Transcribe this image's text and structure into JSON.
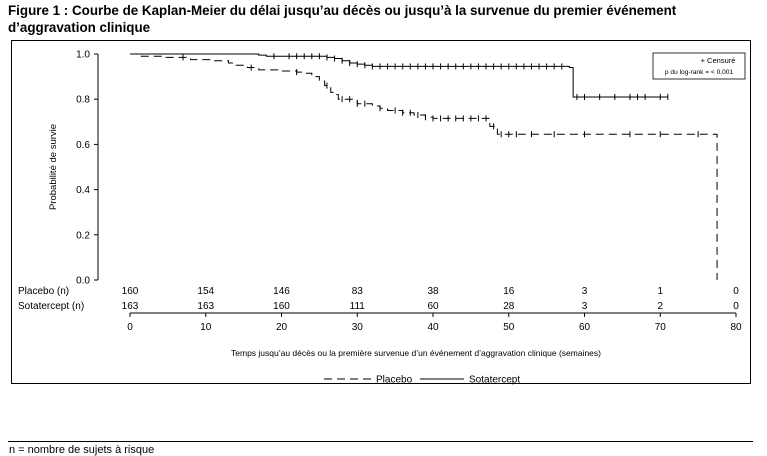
{
  "title": "Figure 1 : Courbe de Kaplan-Meier du délai jusqu’au décès ou jusqu’à la survenue du premier événement d’aggravation clinique",
  "footnote": "n = nombre de sujets à risque",
  "legend_box": {
    "censored": "+ Censuré",
    "pvalue": "p du log-rank = < 0,001"
  },
  "colors": {
    "axis": "#000000",
    "background": "#ffffff"
  },
  "chart_data": {
    "type": "line",
    "xlabel": "Temps jusqu’au décès ou la première survenue d’un événement d’aggravation clinique (semaines)",
    "ylabel": "Probabilité de survie",
    "xlim": [
      0,
      80
    ],
    "ylim": [
      0,
      1
    ],
    "x_ticks": [
      0,
      10,
      20,
      30,
      40,
      50,
      60,
      70,
      80
    ],
    "y_ticks": [
      "0.0",
      "0.2",
      "0.4",
      "0.6",
      "0.8",
      "1.0"
    ],
    "grid": false,
    "legend_position": "bottom",
    "series": [
      {
        "name": "Placebo",
        "style": "dashed",
        "steps": [
          [
            0,
            1.0
          ],
          [
            1.5,
            0.99
          ],
          [
            4.5,
            0.985
          ],
          [
            8,
            0.975
          ],
          [
            11,
            0.97
          ],
          [
            13,
            0.96
          ],
          [
            14,
            0.95
          ],
          [
            15.5,
            0.94
          ],
          [
            17,
            0.93
          ],
          [
            20,
            0.925
          ],
          [
            22,
            0.92
          ],
          [
            23,
            0.915
          ],
          [
            24,
            0.9
          ],
          [
            25,
            0.88
          ],
          [
            25.7,
            0.86
          ],
          [
            26.5,
            0.83
          ],
          [
            27,
            0.82
          ],
          [
            27.5,
            0.8
          ],
          [
            30,
            0.78
          ],
          [
            32,
            0.77
          ],
          [
            33,
            0.76
          ],
          [
            34,
            0.75
          ],
          [
            36,
            0.74
          ],
          [
            37.5,
            0.73
          ],
          [
            39,
            0.72
          ],
          [
            40,
            0.715
          ],
          [
            47.5,
            0.68
          ],
          [
            48.5,
            0.645
          ],
          [
            77,
            0.645
          ],
          [
            77.5,
            0.0
          ]
        ],
        "end": 77.5,
        "censored": [
          7,
          16,
          22,
          26,
          28,
          29,
          30,
          31,
          33,
          35,
          36,
          37,
          38,
          39,
          40,
          41,
          42,
          43,
          44,
          45,
          46,
          47,
          48,
          49,
          50,
          51,
          53,
          56,
          60,
          66,
          70,
          75
        ]
      },
      {
        "name": "Sotatercept",
        "style": "solid",
        "steps": [
          [
            0,
            1.0
          ],
          [
            17,
            0.995
          ],
          [
            18,
            0.99
          ],
          [
            26,
            0.985
          ],
          [
            27,
            0.98
          ],
          [
            28,
            0.97
          ],
          [
            29,
            0.96
          ],
          [
            30,
            0.955
          ],
          [
            31,
            0.95
          ],
          [
            32,
            0.945
          ],
          [
            58,
            0.94
          ],
          [
            58.5,
            0.81
          ]
        ],
        "end": 71,
        "censored": [
          19,
          21,
          22,
          23,
          24,
          25,
          26,
          27,
          28,
          29,
          30,
          31,
          32,
          33,
          34,
          35,
          36,
          37,
          38,
          39,
          40,
          41,
          42,
          43,
          44,
          45,
          46,
          47,
          48,
          49,
          50,
          51,
          52,
          53,
          54,
          55,
          56,
          57,
          59,
          60,
          62,
          64,
          66,
          67,
          68,
          70,
          71
        ]
      }
    ],
    "at_risk": {
      "x": [
        0,
        10,
        20,
        30,
        40,
        50,
        60,
        70,
        80
      ],
      "rows": [
        {
          "label": "Placebo (n)",
          "counts": [
            "160",
            "154",
            "146",
            "83",
            "38",
            "16",
            "3",
            "1",
            "0"
          ]
        },
        {
          "label": "Sotatercept (n)",
          "counts": [
            "163",
            "163",
            "160",
            "111",
            "60",
            "28",
            "3",
            "2",
            "0"
          ]
        }
      ]
    }
  }
}
